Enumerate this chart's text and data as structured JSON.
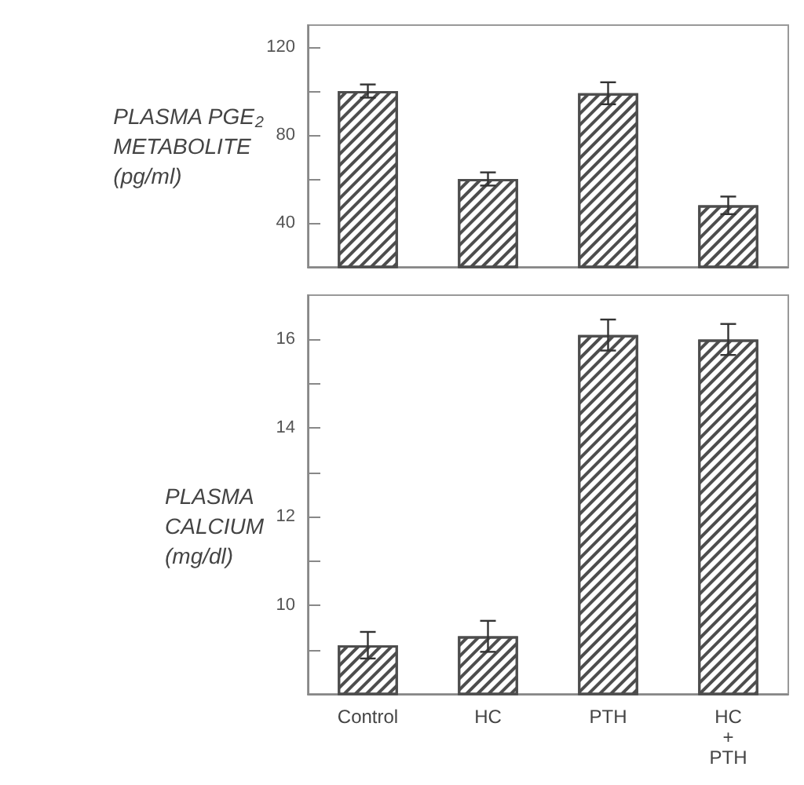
{
  "chart_data": [
    {
      "type": "bar",
      "ylabel": "PLASMA PGE$_{2}$\nMETABOLITE\n(pg/ml)",
      "categories": [
        null,
        null,
        null,
        null
      ],
      "values": [
        100,
        60,
        99,
        48
      ],
      "errors": [
        3,
        3,
        5,
        4
      ],
      "color": "#4d4d4d",
      "ylim": [
        20,
        130
      ],
      "yticks": [
        40,
        {
          "value": 60,
          "label": null
        },
        80,
        {
          "value": 100,
          "label": null
        },
        120
      ],
      "grid": false
    },
    {
      "type": "bar",
      "ylabel": "PLASMA\nCALCIUM\n(mg/dl)",
      "categories": [
        "Control",
        "HC",
        "PTH",
        "HC\n+\nPTH"
      ],
      "values": [
        9.1,
        9.3,
        16.1,
        16.0
      ],
      "errors": [
        0.3,
        0.35,
        0.35,
        0.35
      ],
      "color": "#4d4d4d",
      "ylim": [
        8,
        17
      ],
      "yticks": [
        {
          "value": 9,
          "label": null
        },
        10,
        {
          "value": 11,
          "label": null
        },
        12,
        {
          "value": 13,
          "label": null
        },
        14,
        {
          "value": 15,
          "label": null
        },
        16
      ],
      "grid": false
    }
  ]
}
